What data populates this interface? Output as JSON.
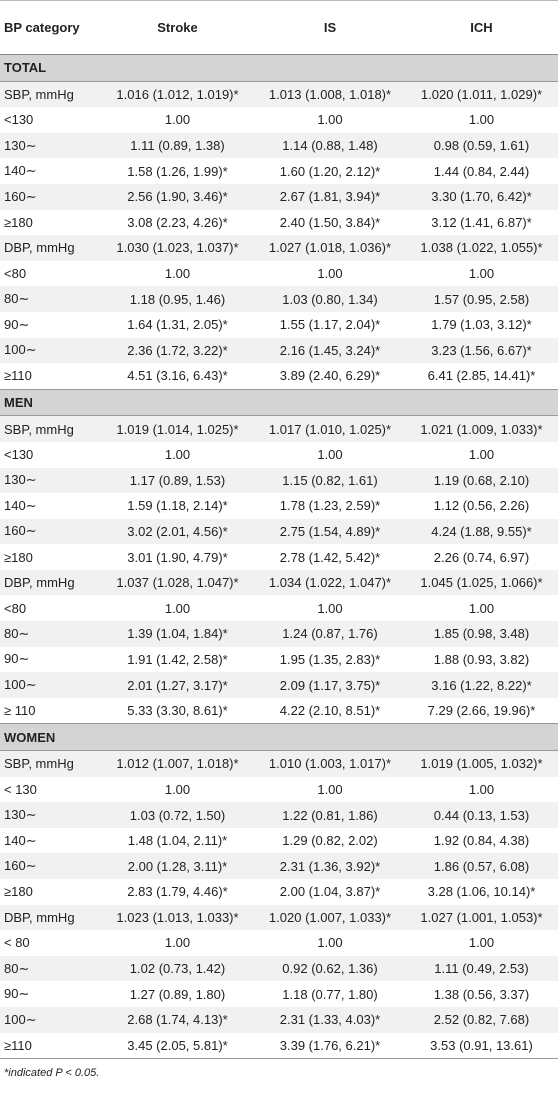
{
  "table": {
    "header": [
      "BP category",
      "Stroke",
      "IS",
      "ICH"
    ],
    "sections": [
      {
        "title": "TOTAL",
        "rows": [
          [
            "SBP, mmHg",
            "1.016 (1.012, 1.019)*",
            "1.013 (1.008, 1.018)*",
            "1.020 (1.011, 1.029)*"
          ],
          [
            "<130",
            "1.00",
            "1.00",
            "1.00"
          ],
          [
            "130∼",
            "1.11 (0.89, 1.38)",
            "1.14 (0.88, 1.48)",
            "0.98 (0.59, 1.61)"
          ],
          [
            "140∼",
            "1.58 (1.26, 1.99)*",
            "1.60 (1.20, 2.12)*",
            "1.44 (0.84, 2.44)"
          ],
          [
            "160∼",
            "2.56 (1.90, 3.46)*",
            "2.67 (1.81, 3.94)*",
            "3.30 (1.70, 6.42)*"
          ],
          [
            "≥180",
            "3.08 (2.23, 4.26)*",
            "2.40 (1.50, 3.84)*",
            "3.12 (1.41, 6.87)*"
          ],
          [
            "DBP, mmHg",
            "1.030 (1.023, 1.037)*",
            "1.027 (1.018, 1.036)*",
            "1.038 (1.022, 1.055)*"
          ],
          [
            "<80",
            "1.00",
            "1.00",
            "1.00"
          ],
          [
            "80∼",
            "1.18 (0.95, 1.46)",
            "1.03 (0.80, 1.34)",
            "1.57 (0.95, 2.58)"
          ],
          [
            "90∼",
            "1.64 (1.31, 2.05)*",
            "1.55 (1.17, 2.04)*",
            "1.79 (1.03, 3.12)*"
          ],
          [
            "100∼",
            "2.36 (1.72, 3.22)*",
            "2.16 (1.45, 3.24)*",
            "3.23 (1.56, 6.67)*"
          ],
          [
            "≥110",
            "4.51 (3.16, 6.43)*",
            "3.89 (2.40, 6.29)*",
            "6.41 (2.85, 14.41)*"
          ]
        ]
      },
      {
        "title": "MEN",
        "rows": [
          [
            "SBP, mmHg",
            "1.019 (1.014, 1.025)*",
            "1.017 (1.010, 1.025)*",
            "1.021 (1.009, 1.033)*"
          ],
          [
            "<130",
            "1.00",
            "1.00",
            "1.00"
          ],
          [
            "130∼",
            "1.17 (0.89, 1.53)",
            "1.15 (0.82, 1.61)",
            "1.19 (0.68, 2.10)"
          ],
          [
            "140∼",
            "1.59 (1.18, 2.14)*",
            "1.78 (1.23, 2.59)*",
            "1.12 (0.56, 2.26)"
          ],
          [
            "160∼",
            "3.02 (2.01, 4.56)*",
            "2.75 (1.54, 4.89)*",
            "4.24 (1.88, 9.55)*"
          ],
          [
            "≥180",
            "3.01 (1.90, 4.79)*",
            "2.78 (1.42, 5.42)*",
            "2.26 (0.74, 6.97)"
          ],
          [
            "DBP, mmHg",
            "1.037 (1.028, 1.047)*",
            "1.034 (1.022, 1.047)*",
            "1.045 (1.025, 1.066)*"
          ],
          [
            "<80",
            "1.00",
            "1.00",
            "1.00"
          ],
          [
            "80∼",
            "1.39 (1.04, 1.84)*",
            "1.24 (0.87, 1.76)",
            "1.85 (0.98, 3.48)"
          ],
          [
            "90∼",
            "1.91 (1.42, 2.58)*",
            "1.95 (1.35, 2.83)*",
            "1.88 (0.93, 3.82)"
          ],
          [
            "100∼",
            "2.01 (1.27, 3.17)*",
            "2.09 (1.17, 3.75)*",
            "3.16 (1.22, 8.22)*"
          ],
          [
            "≥ 110",
            "5.33 (3.30, 8.61)*",
            "4.22 (2.10, 8.51)*",
            "7.29 (2.66, 19.96)*"
          ]
        ]
      },
      {
        "title": "WOMEN",
        "rows": [
          [
            "SBP, mmHg",
            "1.012 (1.007, 1.018)*",
            "1.010 (1.003, 1.017)*",
            "1.019 (1.005, 1.032)*"
          ],
          [
            "< 130",
            "1.00",
            "1.00",
            "1.00"
          ],
          [
            "130∼",
            "1.03 (0.72, 1.50)",
            "1.22 (0.81, 1.86)",
            "0.44 (0.13, 1.53)"
          ],
          [
            "140∼",
            "1.48 (1.04, 2.11)*",
            "1.29 (0.82, 2.02)",
            "1.92 (0.84, 4.38)"
          ],
          [
            "160∼",
            "2.00 (1.28, 3.11)*",
            "2.31 (1.36, 3.92)*",
            "1.86 (0.57, 6.08)"
          ],
          [
            "≥180",
            "2.83 (1.79, 4.46)*",
            "2.00 (1.04, 3.87)*",
            "3.28 (1.06, 10.14)*"
          ],
          [
            "DBP, mmHg",
            "1.023 (1.013, 1.033)*",
            "1.020 (1.007, 1.033)*",
            "1.027 (1.001, 1.053)*"
          ],
          [
            "< 80",
            "1.00",
            "1.00",
            "1.00"
          ],
          [
            "80∼",
            "1.02 (0.73, 1.42)",
            "0.92 (0.62, 1.36)",
            "1.11 (0.49, 2.53)"
          ],
          [
            "90∼",
            "1.27 (0.89, 1.80)",
            "1.18 (0.77, 1.80)",
            "1.38 (0.56, 3.37)"
          ],
          [
            "100∼",
            "2.68 (1.74, 4.13)*",
            "2.31 (1.33, 4.03)*",
            "2.52 (0.82, 7.68)"
          ],
          [
            "≥110",
            "3.45 (2.05, 5.81)*",
            "3.39 (1.76, 6.21)*",
            "3.53 (0.91, 13.61)"
          ]
        ]
      }
    ],
    "footnote": "*indicated P < 0.05."
  }
}
